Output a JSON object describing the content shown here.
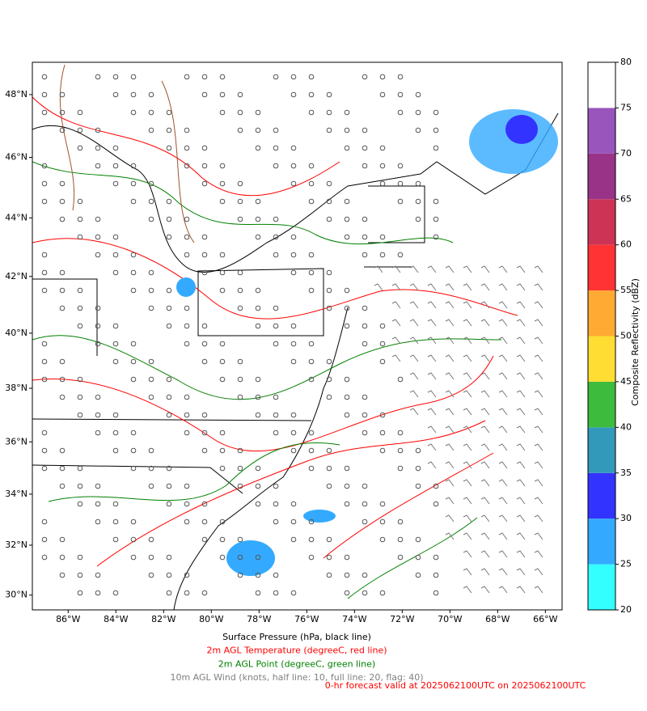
{
  "map": {
    "xlim": [
      -87.5,
      -65.3
    ],
    "ylim": [
      29.4,
      49.0
    ],
    "xticks": [
      {
        "value": -86,
        "label": "86°W"
      },
      {
        "value": -84,
        "label": "84°W"
      },
      {
        "value": -82,
        "label": "82°W"
      },
      {
        "value": -80,
        "label": "80°W"
      },
      {
        "value": -78,
        "label": "78°W"
      },
      {
        "value": -76,
        "label": "76°W"
      },
      {
        "value": -74,
        "label": "74°W"
      },
      {
        "value": -72,
        "label": "72°W"
      },
      {
        "value": -70,
        "label": "70°W"
      },
      {
        "value": -68,
        "label": "68°W"
      },
      {
        "value": -66,
        "label": "66°W"
      }
    ],
    "yticks": [
      {
        "value": 30,
        "label": "30°N"
      },
      {
        "value": 32,
        "label": "32°N"
      },
      {
        "value": 34,
        "label": "34°N"
      },
      {
        "value": 36,
        "label": "36°N"
      },
      {
        "value": 38,
        "label": "38°N"
      },
      {
        "value": 40,
        "label": "40°N"
      },
      {
        "value": 42,
        "label": "42°N"
      },
      {
        "value": 44,
        "label": "44°N"
      },
      {
        "value": 46,
        "label": "46°N"
      },
      {
        "value": 48,
        "label": "48°N"
      }
    ]
  },
  "colorbar": {
    "label": "Composite Reflectivity (dBZ)",
    "lim": [
      20,
      80
    ],
    "ticks": [
      20,
      25,
      30,
      35,
      40,
      45,
      50,
      55,
      60,
      65,
      70,
      75,
      80
    ],
    "colors": [
      "#33ffff",
      "#33aaff",
      "#3333ff",
      "#3399bb",
      "#3dbb3d",
      "#ffdd33",
      "#ffaa33",
      "#ff3333",
      "#cc3355",
      "#993388",
      "#9955bb",
      "#ffffff"
    ]
  },
  "captions": [
    {
      "text": "Surface Pressure (hPa, black line)",
      "color": "#000000"
    },
    {
      "text": "2m AGL Temperature (degreeC, red line)",
      "color": "#ff0000"
    },
    {
      "text": "2m AGL Point (degreeC, green line)",
      "color": "#008000"
    },
    {
      "text": "10m AGL Wind (knots, half line: 10, full line: 20, flag: 40)",
      "color": "#808080"
    }
  ],
  "valid_time": {
    "text": "0-hr forecast valid at 2025062100UTC on 2025062100UTC",
    "color": "#ff0000"
  }
}
